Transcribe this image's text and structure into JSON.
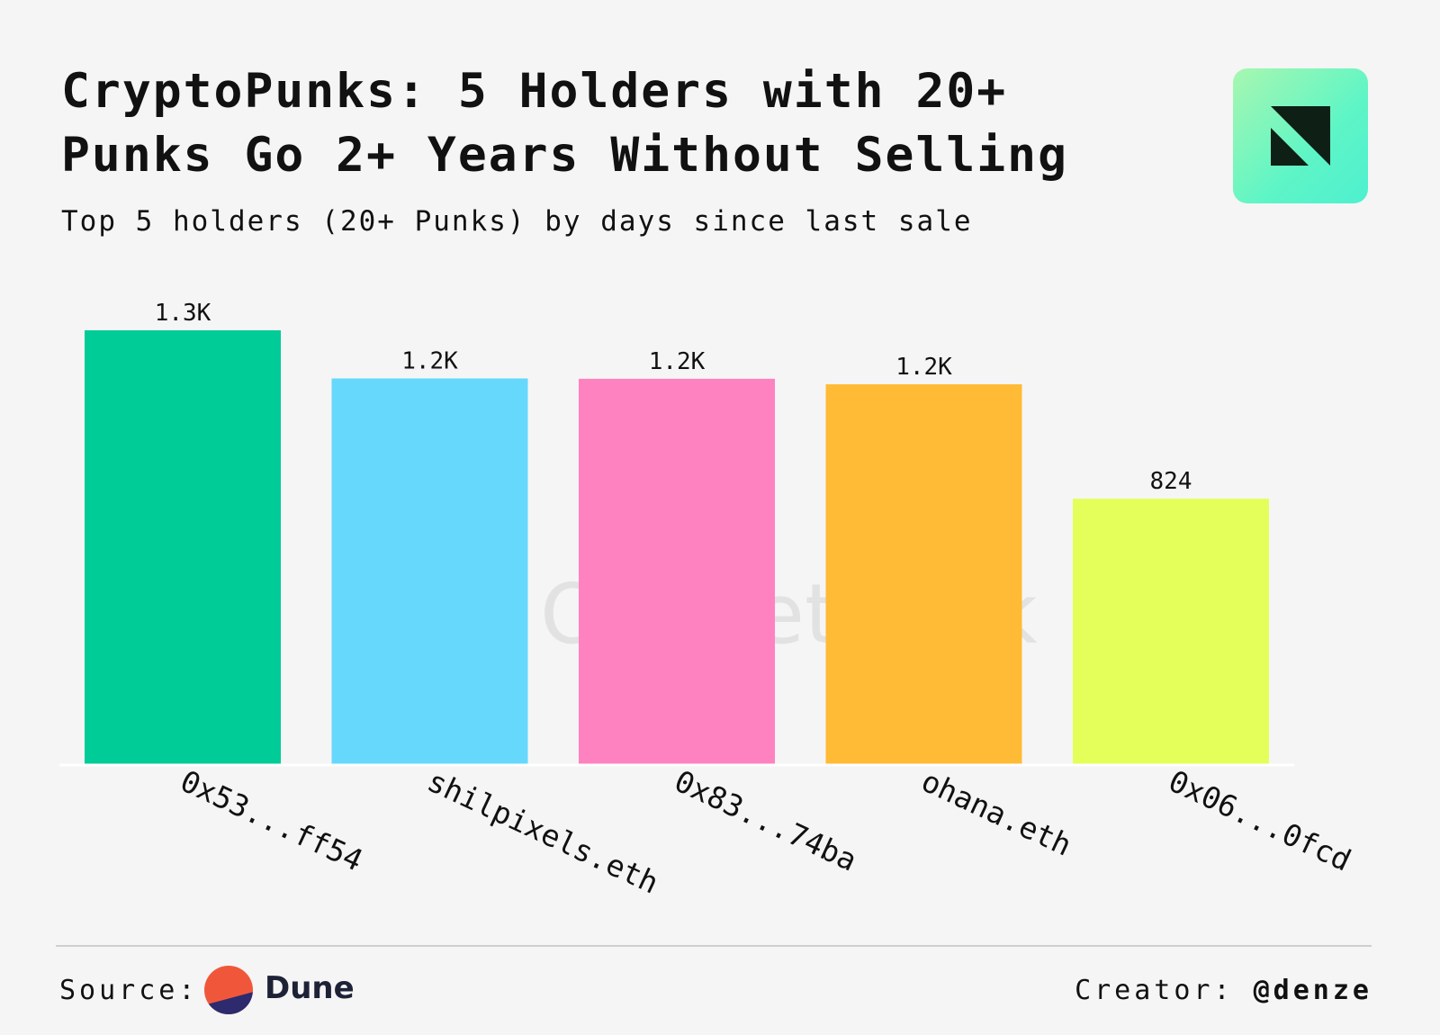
{
  "header": {
    "title": "CryptoPunks: 5 Holders with 20+ Punks Go 2+ Years Without Selling",
    "subtitle": "Top 5 holders (20+ Punks) by days since last sale"
  },
  "watermark": {
    "text": "OurNetwork"
  },
  "footer": {
    "source_label": "Source:",
    "source_name": "Dune",
    "creator_label": "Creator:",
    "creator_handle": "@denze"
  },
  "colors": {
    "background": "#f5f5f5",
    "text": "#111111",
    "logo_mark": "#0e1f16"
  },
  "icons": {
    "brand_logo": "ournetwork-logo-icon",
    "source_logo": "dune-logo-icon"
  },
  "chart_data": {
    "type": "bar",
    "title": "CryptoPunks: 5 Holders with 20+ Punks Go 2+ Years Without Selling",
    "subtitle": "Top 5 holders (20+ Punks) by days since last sale",
    "categories": [
      "0x53...ff54",
      "shilpixels.eth",
      "0x83...74ba",
      "ohana.eth",
      "0x06...0fcd"
    ],
    "values": [
      1345,
      1196,
      1195,
      1178,
      824
    ],
    "data_labels": [
      "1.3K",
      "1.2K",
      "1.2K",
      "1.2K",
      "824"
    ],
    "bar_colors": [
      "#00cc98",
      "#66d8fc",
      "#ff82c0",
      "#ffbb36",
      "#e4ff5a"
    ],
    "xlabel": "",
    "ylabel": "",
    "ylim": [
      0,
      1345
    ],
    "grid": false,
    "legend": "none"
  }
}
